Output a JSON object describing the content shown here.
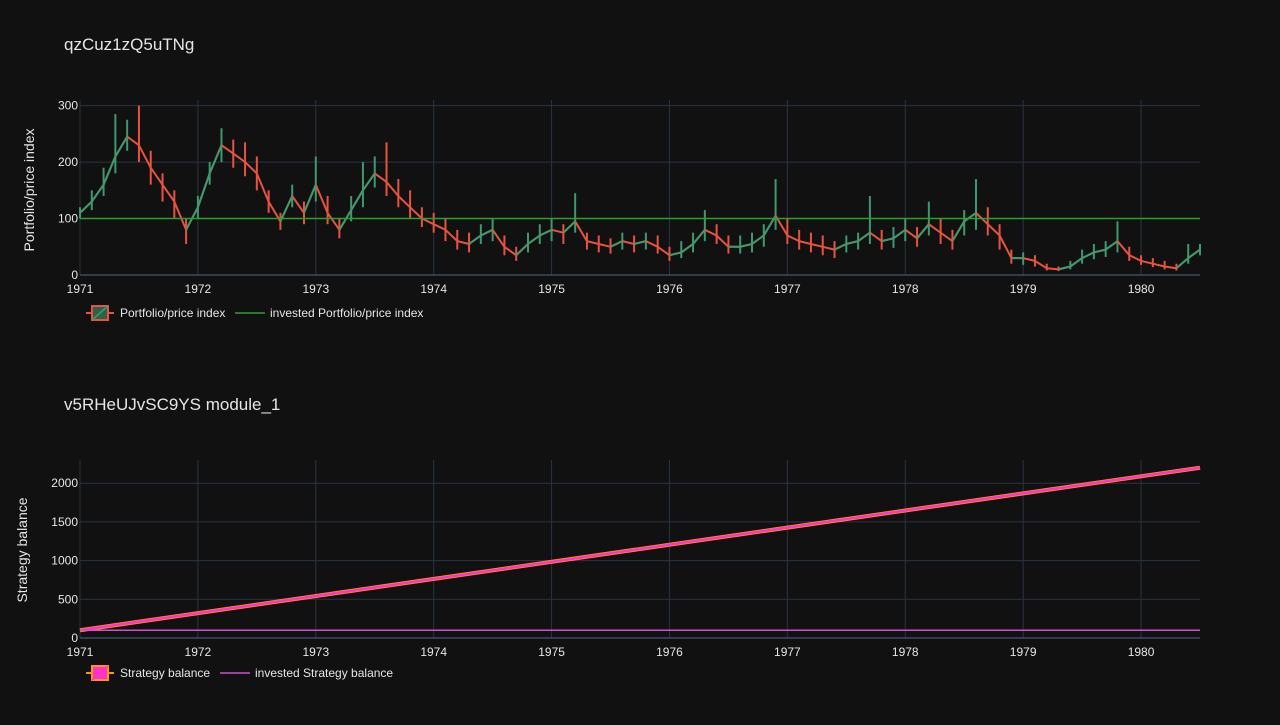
{
  "colors": {
    "background": "#111111",
    "grid": "#283442",
    "text": "#e6e6e6",
    "ohlc_up": "#3d9970",
    "ohlc_down": "#e8533f",
    "invested_line_top": "#2ca02c",
    "strategy_line": "#ff33cc",
    "strategy_band": "#ff9900",
    "invested_line_bottom": "#d14fd1"
  },
  "chart_data": [
    {
      "type": "ohlc",
      "title": "qzCuz1zQ5uTNg",
      "xlabel": "",
      "ylabel": "Portfolio/price index",
      "x_ticks": [
        "1971",
        "1972",
        "1973",
        "1974",
        "1975",
        "1976",
        "1977",
        "1978",
        "1979",
        "1980"
      ],
      "y_ticks": [
        "0",
        "100",
        "200",
        "300"
      ],
      "xlim": [
        1971.0,
        1980.5
      ],
      "ylim": [
        0,
        310
      ],
      "grid": true,
      "legend_position": "bottom-left",
      "series": [
        {
          "name": "Portfolio/price index",
          "kind": "ohlc",
          "x": [
            1971.0,
            1971.1,
            1971.2,
            1971.3,
            1971.4,
            1971.5,
            1971.6,
            1971.7,
            1971.8,
            1971.9,
            1972.0,
            1972.1,
            1972.2,
            1972.3,
            1972.4,
            1972.5,
            1972.6,
            1972.7,
            1972.8,
            1972.9,
            1973.0,
            1973.1,
            1973.2,
            1973.3,
            1973.4,
            1973.5,
            1973.6,
            1973.7,
            1973.8,
            1973.9,
            1974.0,
            1974.1,
            1974.2,
            1974.3,
            1974.4,
            1974.5,
            1974.6,
            1974.7,
            1974.8,
            1974.9,
            1975.0,
            1975.1,
            1975.2,
            1975.3,
            1975.4,
            1975.5,
            1975.6,
            1975.7,
            1975.8,
            1975.9,
            1976.0,
            1976.1,
            1976.2,
            1976.3,
            1976.4,
            1976.5,
            1976.6,
            1976.7,
            1976.8,
            1976.9,
            1977.0,
            1977.1,
            1977.2,
            1977.3,
            1977.4,
            1977.5,
            1977.6,
            1977.7,
            1977.8,
            1977.9,
            1978.0,
            1978.1,
            1978.2,
            1978.3,
            1978.4,
            1978.5,
            1978.6,
            1978.7,
            1978.8,
            1978.9,
            1979.0,
            1979.1,
            1979.2,
            1979.3,
            1979.4,
            1979.5,
            1979.6,
            1979.7,
            1979.8,
            1979.9,
            1980.0,
            1980.1,
            1980.2,
            1980.3,
            1980.4,
            1980.5
          ],
          "values": [
            110,
            130,
            160,
            210,
            245,
            230,
            190,
            160,
            130,
            80,
            120,
            180,
            230,
            215,
            200,
            180,
            130,
            95,
            140,
            110,
            160,
            110,
            80,
            115,
            150,
            180,
            165,
            140,
            120,
            100,
            90,
            80,
            60,
            55,
            70,
            80,
            50,
            35,
            55,
            70,
            80,
            75,
            95,
            60,
            55,
            50,
            60,
            55,
            60,
            50,
            35,
            40,
            55,
            80,
            70,
            50,
            50,
            55,
            70,
            105,
            70,
            60,
            55,
            50,
            45,
            55,
            60,
            75,
            60,
            65,
            80,
            65,
            90,
            75,
            60,
            95,
            110,
            90,
            70,
            30,
            30,
            25,
            12,
            10,
            15,
            30,
            40,
            45,
            60,
            35,
            25,
            20,
            15,
            12,
            30,
            45
          ],
          "highs": [
            120,
            150,
            190,
            285,
            275,
            300,
            220,
            180,
            150,
            100,
            140,
            200,
            260,
            240,
            235,
            210,
            150,
            110,
            160,
            130,
            210,
            140,
            100,
            140,
            200,
            210,
            235,
            170,
            150,
            120,
            110,
            100,
            80,
            75,
            90,
            100,
            70,
            50,
            75,
            90,
            100,
            90,
            145,
            75,
            70,
            65,
            75,
            70,
            75,
            70,
            50,
            60,
            75,
            115,
            90,
            70,
            70,
            75,
            90,
            170,
            100,
            80,
            75,
            70,
            60,
            70,
            75,
            140,
            80,
            85,
            100,
            85,
            130,
            100,
            80,
            115,
            170,
            120,
            90,
            45,
            40,
            35,
            20,
            15,
            25,
            45,
            55,
            60,
            95,
            50,
            35,
            30,
            25,
            20,
            55,
            55
          ],
          "lows": [
            100,
            115,
            140,
            180,
            220,
            200,
            160,
            130,
            100,
            55,
            100,
            160,
            200,
            190,
            175,
            150,
            110,
            80,
            120,
            90,
            130,
            90,
            65,
            95,
            120,
            155,
            140,
            120,
            100,
            85,
            75,
            60,
            45,
            40,
            55,
            60,
            35,
            25,
            40,
            55,
            60,
            55,
            75,
            45,
            40,
            38,
            45,
            40,
            45,
            38,
            25,
            30,
            40,
            60,
            55,
            38,
            38,
            40,
            50,
            80,
            55,
            45,
            40,
            35,
            30,
            40,
            45,
            55,
            45,
            48,
            60,
            50,
            70,
            55,
            45,
            70,
            80,
            70,
            45,
            20,
            18,
            15,
            8,
            7,
            10,
            20,
            28,
            32,
            40,
            25,
            18,
            14,
            10,
            8,
            20,
            35
          ]
        },
        {
          "name": "invested Portfolio/price index",
          "kind": "line",
          "x": [
            1971.0,
            1980.5
          ],
          "values": [
            100,
            100
          ]
        }
      ]
    },
    {
      "type": "line",
      "title": "v5RHeUJvSC9YS module_1",
      "xlabel": "",
      "ylabel": "Strategy balance",
      "x_ticks": [
        "1971",
        "1972",
        "1973",
        "1974",
        "1975",
        "1976",
        "1977",
        "1978",
        "1979",
        "1980"
      ],
      "y_ticks": [
        "0",
        "500",
        "1000",
        "1500",
        "2000"
      ],
      "xlim": [
        1971.0,
        1980.5
      ],
      "ylim": [
        0,
        2300
      ],
      "grid": true,
      "legend_position": "bottom-left",
      "series": [
        {
          "name": "Strategy balance",
          "kind": "ohlc",
          "x": [
            1971.0,
            1980.5
          ],
          "values": [
            100,
            2200
          ]
        },
        {
          "name": "invested Strategy balance",
          "kind": "line",
          "x": [
            1971.0,
            1980.5
          ],
          "values": [
            100,
            100
          ]
        }
      ]
    }
  ]
}
